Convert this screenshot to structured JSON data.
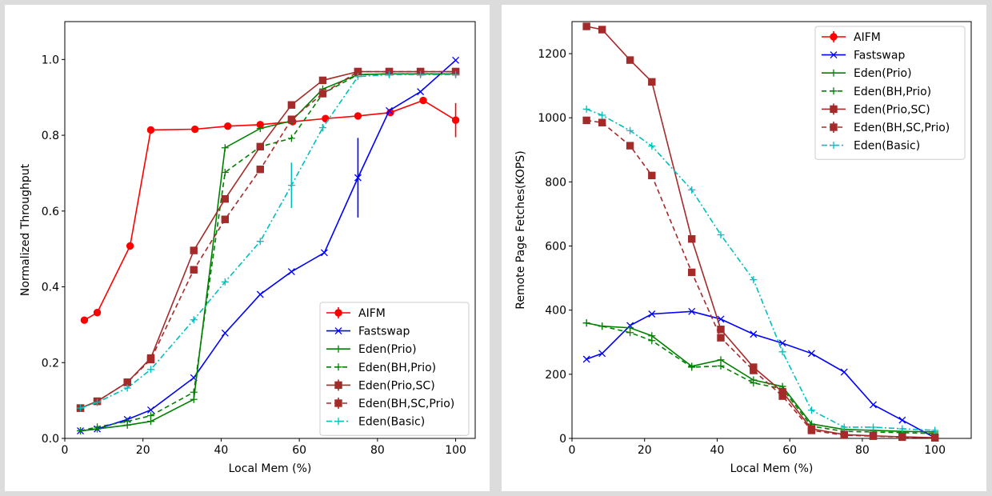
{
  "chart_data": [
    {
      "type": "line",
      "title": "",
      "xlabel": "Local Mem (%)",
      "ylabel": "Normalized Throughput",
      "xlim": [
        0,
        105
      ],
      "ylim": [
        0,
        1.1
      ],
      "xticks": [
        "0",
        "20",
        "40",
        "60",
        "80",
        "100"
      ],
      "xtick_values": [
        0,
        20,
        40,
        60,
        80,
        100
      ],
      "yticks": [
        "0.0",
        "0.2",
        "0.4",
        "0.6",
        "0.8",
        "1.0"
      ],
      "ytick_values": [
        0,
        0.2,
        0.4,
        0.6,
        0.8,
        1.0
      ],
      "grid": false,
      "legend_position": "lower-right",
      "series": [
        {
          "name": "AIFM",
          "color": "#ff0000",
          "dash": "solid",
          "marker": "circle",
          "x": [
            5,
            8.3,
            16.7,
            22,
            33.3,
            41.7,
            50,
            58.3,
            66.7,
            75,
            83.3,
            91.7,
            100
          ],
          "y": [
            0.312,
            0.332,
            0.508,
            0.814,
            0.816,
            0.824,
            0.828,
            0.836,
            0.844,
            0.851,
            0.86,
            0.892,
            0.84
          ],
          "err": [
            0.005,
            0.005,
            0.01,
            0.005,
            0.005,
            0.005,
            0.005,
            0.005,
            0.005,
            0.005,
            0.005,
            0.005,
            0.045
          ]
        },
        {
          "name": "Fastswap",
          "color": "#0000ff",
          "dash": "solid",
          "marker": "x",
          "x": [
            4,
            8.3,
            16,
            22,
            33,
            41,
            50,
            58,
            66.4,
            75,
            83,
            91,
            100
          ],
          "y": [
            0.02,
            0.025,
            0.05,
            0.075,
            0.16,
            0.278,
            0.38,
            0.44,
            0.49,
            0.688,
            0.865,
            0.915,
            0.998
          ],
          "err": [
            0,
            0,
            0,
            0,
            0,
            0,
            0,
            0,
            0,
            0.105,
            0,
            0,
            0
          ]
        },
        {
          "name": "Eden(Prio)",
          "color": "#008000",
          "dash": "solid",
          "marker": "plus",
          "x": [
            4,
            8.3,
            16,
            22,
            33,
            41,
            50,
            58,
            66,
            75,
            83,
            91,
            100
          ],
          "y": [
            0.02,
            0.025,
            0.035,
            0.045,
            0.103,
            0.767,
            0.818,
            0.838,
            0.922,
            0.96,
            0.962,
            0.962,
            0.962
          ],
          "err": [
            0,
            0,
            0,
            0,
            0,
            0,
            0,
            0,
            0,
            0,
            0,
            0,
            0
          ]
        },
        {
          "name": "Eden(BH,Prio)",
          "color": "#008000",
          "dash": "dashed",
          "marker": "plus",
          "x": [
            4,
            8.3,
            16,
            22,
            33,
            41,
            50,
            58,
            66,
            75,
            83,
            91,
            100
          ],
          "y": [
            0.02,
            0.03,
            0.045,
            0.06,
            0.122,
            0.702,
            0.77,
            0.792,
            0.91,
            0.96,
            0.962,
            0.962,
            0.962
          ],
          "err": [
            0,
            0,
            0,
            0,
            0,
            0,
            0,
            0,
            0,
            0,
            0,
            0,
            0
          ]
        },
        {
          "name": "Eden(Prio,SC)",
          "color": "#a52a2a",
          "dash": "solid",
          "marker": "square",
          "x": [
            4,
            8.3,
            16,
            22,
            33,
            41,
            50,
            58,
            66,
            75,
            83,
            91,
            100
          ],
          "y": [
            0.08,
            0.098,
            0.148,
            0.212,
            0.496,
            0.632,
            0.77,
            0.88,
            0.945,
            0.968,
            0.968,
            0.968,
            0.968
          ],
          "err": [
            0,
            0,
            0,
            0,
            0,
            0,
            0,
            0,
            0,
            0,
            0,
            0,
            0
          ]
        },
        {
          "name": "Eden(BH,SC,Prio)",
          "color": "#a52a2a",
          "dash": "dashed",
          "marker": "square",
          "x": [
            4,
            8.3,
            16,
            22,
            33,
            41,
            50,
            58,
            66,
            75,
            83,
            91,
            100
          ],
          "y": [
            0.08,
            0.098,
            0.148,
            0.208,
            0.445,
            0.578,
            0.71,
            0.842,
            0.91,
            0.968,
            0.968,
            0.968,
            0.968
          ],
          "err": [
            0,
            0,
            0,
            0,
            0,
            0,
            0.01,
            0,
            0.01,
            0,
            0,
            0,
            0
          ]
        },
        {
          "name": "Eden(Basic)",
          "color": "#00bfbf",
          "dash": "dashdot",
          "marker": "plus",
          "x": [
            4,
            8.3,
            16,
            22,
            33,
            41,
            50,
            58,
            66,
            75,
            83,
            91,
            100
          ],
          "y": [
            0.08,
            0.095,
            0.133,
            0.182,
            0.313,
            0.413,
            0.52,
            0.668,
            0.82,
            0.955,
            0.96,
            0.96,
            0.96
          ],
          "err": [
            0,
            0,
            0,
            0,
            0,
            0,
            0,
            0.06,
            0.01,
            0,
            0,
            0,
            0
          ]
        }
      ]
    },
    {
      "type": "line",
      "title": "",
      "xlabel": "Local Mem (%)",
      "ylabel": "Remote Page Fetches(KOPS)",
      "xlim": [
        0,
        110
      ],
      "ylim": [
        0,
        1300
      ],
      "xticks": [
        "0",
        "20",
        "40",
        "60",
        "80",
        "100"
      ],
      "xtick_values": [
        0,
        20,
        40,
        60,
        80,
        100
      ],
      "yticks": [
        "0",
        "200",
        "400",
        "600",
        "800",
        "1000",
        "1200"
      ],
      "ytick_values": [
        0,
        200,
        400,
        600,
        800,
        1000,
        1200
      ],
      "grid": false,
      "legend_position": "upper-right",
      "series": [
        {
          "name": "AIFM",
          "color": "#ff0000",
          "dash": "solid",
          "marker": "circle",
          "x": [],
          "y": [],
          "err": []
        },
        {
          "name": "Fastswap",
          "color": "#0000ff",
          "dash": "solid",
          "marker": "x",
          "x": [
            4,
            8.3,
            16,
            22,
            33,
            41,
            50,
            58,
            66,
            75,
            83,
            91,
            100
          ],
          "y": [
            247,
            265,
            352,
            388,
            396,
            372,
            325,
            297,
            265,
            207,
            105,
            57,
            2
          ]
        },
        {
          "name": "Eden(Prio)",
          "color": "#008000",
          "dash": "solid",
          "marker": "plus",
          "x": [
            4,
            8.3,
            16,
            22,
            33,
            41,
            50,
            58,
            66,
            75,
            83,
            91,
            100
          ],
          "y": [
            360,
            350,
            345,
            320,
            225,
            245,
            182,
            162,
            45,
            28,
            25,
            22,
            20
          ]
        },
        {
          "name": "Eden(BH,Prio)",
          "color": "#008000",
          "dash": "dashed",
          "marker": "plus",
          "x": [
            4,
            8.3,
            16,
            22,
            33,
            41,
            50,
            58,
            66,
            75,
            83,
            91,
            100
          ],
          "y": [
            360,
            350,
            330,
            305,
            222,
            226,
            173,
            155,
            38,
            22,
            20,
            18,
            15
          ]
        },
        {
          "name": "Eden(Prio,SC)",
          "color": "#a52a2a",
          "dash": "solid",
          "marker": "square",
          "x": [
            4,
            8.3,
            16,
            22,
            33,
            41,
            50,
            58,
            66,
            75,
            83,
            91,
            100
          ],
          "y": [
            1285,
            1275,
            1180,
            1112,
            622,
            340,
            222,
            145,
            30,
            12,
            8,
            5,
            2
          ]
        },
        {
          "name": "Eden(BH,SC,Prio)",
          "color": "#a52a2a",
          "dash": "dashed",
          "marker": "square",
          "x": [
            4,
            8.3,
            16,
            22,
            33,
            41,
            50,
            58,
            66,
            75,
            83,
            91,
            100
          ],
          "y": [
            992,
            985,
            913,
            820,
            518,
            314,
            212,
            132,
            25,
            10,
            7,
            4,
            2
          ]
        },
        {
          "name": "Eden(Basic)",
          "color": "#00bfbf",
          "dash": "dashdot",
          "marker": "plus",
          "x": [
            4,
            8.3,
            16,
            22,
            33,
            41,
            50,
            58,
            66,
            75,
            83,
            91,
            100
          ],
          "y": [
            1027,
            1008,
            960,
            912,
            775,
            635,
            495,
            270,
            88,
            35,
            35,
            30,
            25
          ]
        }
      ]
    }
  ]
}
